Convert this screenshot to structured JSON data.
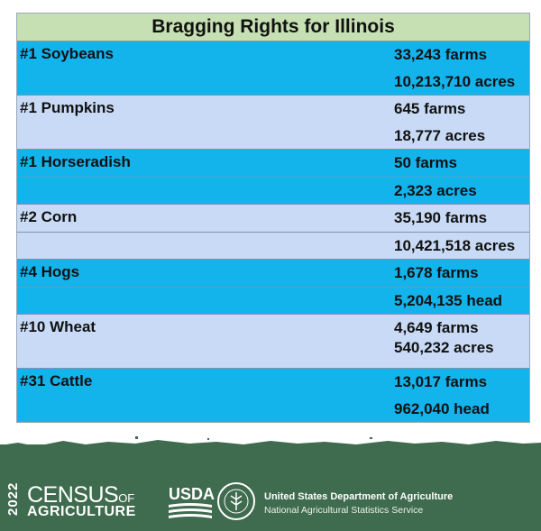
{
  "title": "Bragging Rights for Illinois",
  "rows": [
    {
      "item": "#1 Soybeans",
      "line1": "33,243 farms",
      "line2": "10,213,710 acres",
      "color": "#13b3ec"
    },
    {
      "item": "#1 Pumpkins",
      "line1": "645 farms",
      "line2": "18,777 acres",
      "color": "#c8daf5"
    },
    {
      "item": "#1 Horseradish",
      "line1": "50 farms",
      "line2": "2,323 acres",
      "color": "#13b3ec"
    },
    {
      "item": "#2 Corn",
      "line1": "35,190 farms",
      "line2": "10,421,518 acres",
      "color": "#c8daf5"
    },
    {
      "item": "#4 Hogs",
      "line1": "1,678 farms",
      "line2": "5,204,135 head",
      "color": "#13b3ec"
    },
    {
      "item": "#10 Wheat",
      "line1": "4,649 farms",
      "line2": "540,232 acres",
      "color": "#c8daf5"
    },
    {
      "item": "#31 Cattle",
      "line1": "13,017 farms",
      "line2": "962,040 head",
      "color": "#13b3ec"
    }
  ],
  "footer": {
    "year": "2022",
    "census": "CENSUS",
    "census_of": "OF",
    "agriculture": "AGRICULTURE",
    "usda": "USDA",
    "department": "United States Department of Agriculture",
    "service": "National Agricultural Statistics Service",
    "background_color": "#3f6b4e"
  }
}
